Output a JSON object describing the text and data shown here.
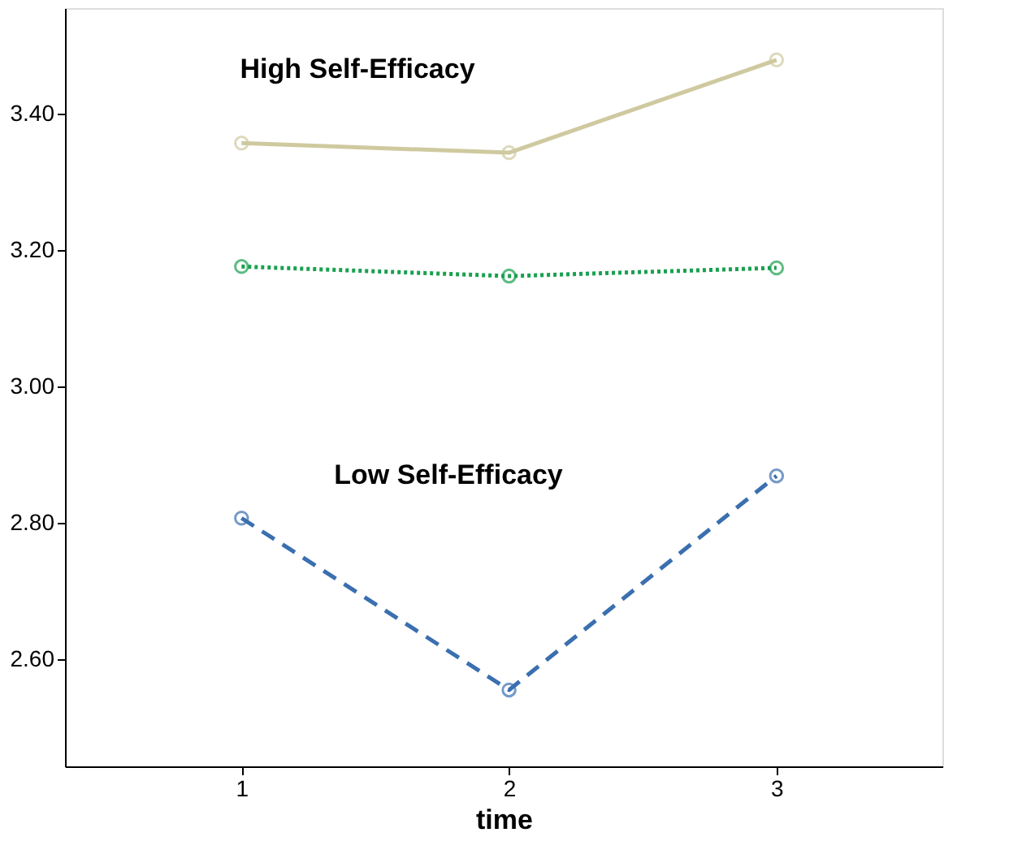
{
  "chart_data": {
    "type": "line",
    "xlabel": "time",
    "x": [
      1,
      2,
      3
    ],
    "xlim": [
      0.34,
      3.62
    ],
    "xticks": [
      1,
      2,
      3
    ],
    "ylim": [
      2.443,
      3.555
    ],
    "yticks": [
      {
        "value": 2.6,
        "label": "2.60"
      },
      {
        "value": 2.8,
        "label": "2.80"
      },
      {
        "value": 3.0,
        "label": "3.00"
      },
      {
        "value": 3.2,
        "label": "3.20"
      },
      {
        "value": 3.4,
        "label": "3.40"
      }
    ],
    "series": [
      {
        "color": "#cfc9a0",
        "values": [
          3.357,
          3.343,
          3.479
        ],
        "line_style": "solid"
      },
      {
        "color": "#1aa050",
        "values": [
          3.176,
          3.162,
          3.174
        ],
        "line_style": "dotted"
      },
      {
        "color": "#3a6fb0",
        "values": [
          2.807,
          2.555,
          2.869
        ],
        "line_style": "dashed"
      }
    ],
    "marker": "circle",
    "grid": false,
    "annotations": [
      "High Self-Efficacy",
      "Low Self-Efficacy"
    ]
  }
}
